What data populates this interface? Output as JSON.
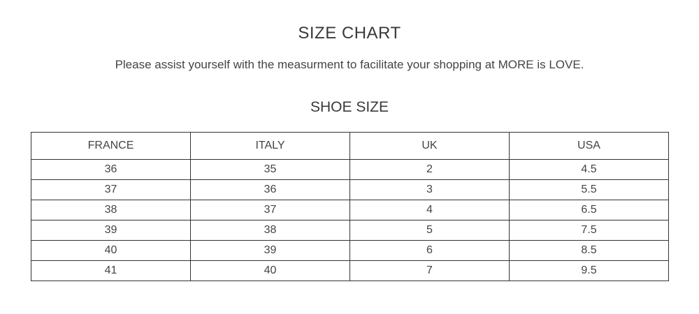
{
  "title": "SIZE CHART",
  "subtitle": "Please assist yourself with the measurment to facilitate your shopping at MORE is LOVE.",
  "section_title": "SHOE SIZE",
  "table": {
    "headers": [
      "FRANCE",
      "ITALY",
      "UK",
      "USA"
    ],
    "rows": [
      [
        "36",
        "35",
        "2",
        "4.5"
      ],
      [
        "37",
        "36",
        "3",
        "5.5"
      ],
      [
        "38",
        "37",
        "4",
        "6.5"
      ],
      [
        "39",
        "38",
        "5",
        "7.5"
      ],
      [
        "40",
        "39",
        "6",
        "8.5"
      ],
      [
        "41",
        "40",
        "7",
        "9.5"
      ]
    ]
  }
}
